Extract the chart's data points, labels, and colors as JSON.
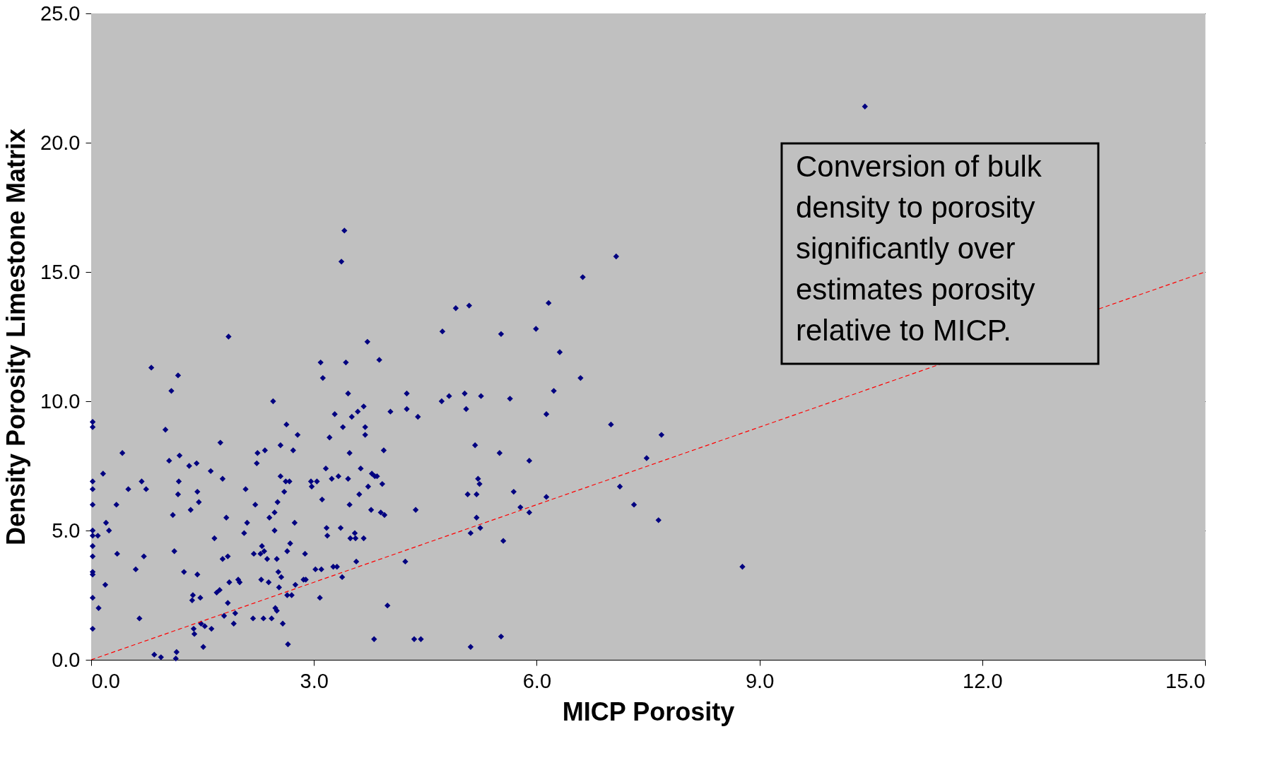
{
  "chart_data": {
    "type": "scatter",
    "xlabel": "MICP Porosity",
    "ylabel": "Density Porosity Limestone Matrix",
    "xlim": [
      0,
      15
    ],
    "ylim": [
      0,
      25
    ],
    "xticks": [
      {
        "value": 0,
        "label": "0.0"
      },
      {
        "value": 3,
        "label": "3.0"
      },
      {
        "value": 6,
        "label": "6.0"
      },
      {
        "value": 9,
        "label": "9.0"
      },
      {
        "value": 12,
        "label": "12.0"
      },
      {
        "value": 15,
        "label": "15.0"
      }
    ],
    "yticks": [
      {
        "value": 0,
        "label": "0.0"
      },
      {
        "value": 5,
        "label": "5.0"
      },
      {
        "value": 10,
        "label": "10.0"
      },
      {
        "value": 15,
        "label": "15.0"
      },
      {
        "value": 20,
        "label": "20.0"
      },
      {
        "value": 25,
        "label": "25.0"
      }
    ],
    "grid": "y",
    "marker": "diamond",
    "annotations": [
      "Conversion of bulk density to porosity significantly over estimates porosity relative to MICP."
    ],
    "series": [
      {
        "color": "#000080",
        "x": [
          0.02,
          0.02,
          0.02,
          0.02,
          0.02,
          0.02,
          0.02,
          0.02,
          0.02,
          0.02,
          0.02,
          0.02,
          0.02,
          0.09,
          0.1,
          0.16,
          0.19,
          0.2,
          0.24,
          0.34,
          0.35,
          0.42,
          0.5,
          0.6,
          0.65,
          0.68,
          0.71,
          0.74,
          0.81,
          0.85,
          0.94,
          1.0,
          1.05,
          1.08,
          1.1,
          1.12,
          1.14,
          1.15,
          1.17,
          1.17,
          1.18,
          1.19,
          1.25,
          1.32,
          1.34,
          1.36,
          1.37,
          1.38,
          1.39,
          1.42,
          1.43,
          1.45,
          1.43,
          1.47,
          1.48,
          1.51,
          1.53,
          1.61,
          1.62,
          1.66,
          1.69,
          1.73,
          1.74,
          1.77,
          1.77,
          1.79,
          1.82,
          1.84,
          1.85,
          1.84,
          1.86,
          1.92,
          1.94,
          1.98,
          2.0,
          2.08,
          2.06,
          2.1,
          2.18,
          2.19,
          2.21,
          2.23,
          2.24,
          2.28,
          2.29,
          2.3,
          2.32,
          2.33,
          2.34,
          2.37,
          2.39,
          2.4,
          2.43,
          2.45,
          2.47,
          2.47,
          2.48,
          2.5,
          2.5,
          2.51,
          2.52,
          2.53,
          2.55,
          2.55,
          2.56,
          2.58,
          2.6,
          2.62,
          2.63,
          2.64,
          2.64,
          2.65,
          2.67,
          2.68,
          2.7,
          2.72,
          2.74,
          2.75,
          2.78,
          2.86,
          2.88,
          2.89,
          2.96,
          2.97,
          3.02,
          3.04,
          3.08,
          3.09,
          3.1,
          3.11,
          3.12,
          3.16,
          3.17,
          3.18,
          3.21,
          3.24,
          3.26,
          3.28,
          3.31,
          3.33,
          3.36,
          3.37,
          3.38,
          3.39,
          3.41,
          3.43,
          3.46,
          3.46,
          3.48,
          3.48,
          3.49,
          3.51,
          3.55,
          3.56,
          3.57,
          3.59,
          3.61,
          3.63,
          3.67,
          3.67,
          3.69,
          3.69,
          3.72,
          3.73,
          3.77,
          3.78,
          3.81,
          3.82,
          3.85,
          3.88,
          3.9,
          3.92,
          3.94,
          3.95,
          3.99,
          4.03,
          4.23,
          4.25,
          4.25,
          4.35,
          4.37,
          4.4,
          4.44,
          4.73,
          4.72,
          4.82,
          4.91,
          5.03,
          5.05,
          5.07,
          5.09,
          5.11,
          5.11,
          5.17,
          5.19,
          5.19,
          5.21,
          5.23,
          5.24,
          5.25,
          5.5,
          5.52,
          5.52,
          5.55,
          5.64,
          5.69,
          5.78,
          5.9,
          5.9,
          5.99,
          6.13,
          6.13,
          6.16,
          6.23,
          6.31,
          6.59,
          6.62,
          7.0,
          7.07,
          7.12,
          7.31,
          7.48,
          7.64,
          7.68,
          8.77,
          10.42
        ],
        "values": [
          9.2,
          9.0,
          6.9,
          6.6,
          6.0,
          5.0,
          4.8,
          4.4,
          4.0,
          3.4,
          3.3,
          2.4,
          1.2,
          4.8,
          2.0,
          7.2,
          2.9,
          5.3,
          5.0,
          6.0,
          4.1,
          8.0,
          6.6,
          3.5,
          1.6,
          6.9,
          4.0,
          6.6,
          11.3,
          0.2,
          0.1,
          8.9,
          7.7,
          10.4,
          5.6,
          4.2,
          0.05,
          0.3,
          11.0,
          6.4,
          6.9,
          7.9,
          3.4,
          7.5,
          5.8,
          2.3,
          2.5,
          1.2,
          1.0,
          7.6,
          6.5,
          6.1,
          3.3,
          2.4,
          1.4,
          0.5,
          1.3,
          7.3,
          1.2,
          4.7,
          2.6,
          2.7,
          8.4,
          7.0,
          3.9,
          1.7,
          5.5,
          4.0,
          12.5,
          2.2,
          3.0,
          1.4,
          1.8,
          3.1,
          3.0,
          6.6,
          4.9,
          5.3,
          1.6,
          4.1,
          6.0,
          7.6,
          8.0,
          4.1,
          3.1,
          4.4,
          1.6,
          4.2,
          8.1,
          3.9,
          3.0,
          5.5,
          1.6,
          10.0,
          5.7,
          5.0,
          2.0,
          1.9,
          3.9,
          6.1,
          3.4,
          2.8,
          8.3,
          7.1,
          3.2,
          1.4,
          6.5,
          6.9,
          9.1,
          4.2,
          2.5,
          0.6,
          6.9,
          4.5,
          2.5,
          8.1,
          5.3,
          2.9,
          8.7,
          3.1,
          4.1,
          3.1,
          6.9,
          6.7,
          3.5,
          6.9,
          2.4,
          11.5,
          3.5,
          6.2,
          10.9,
          7.4,
          5.1,
          4.8,
          8.6,
          7.0,
          3.6,
          9.5,
          3.6,
          7.1,
          5.1,
          15.4,
          3.2,
          9.0,
          16.6,
          11.5,
          7.0,
          10.3,
          6.0,
          8.0,
          4.7,
          9.4,
          4.9,
          4.7,
          3.8,
          9.6,
          6.4,
          7.4,
          4.7,
          9.8,
          9.0,
          8.7,
          12.3,
          6.7,
          5.8,
          7.2,
          0.8,
          7.1,
          7.1,
          11.6,
          5.7,
          6.8,
          8.1,
          5.6,
          2.1,
          9.6,
          3.8,
          9.7,
          10.3,
          0.8,
          5.8,
          9.4,
          0.8,
          12.7,
          10.0,
          10.2,
          13.6,
          10.3,
          9.7,
          6.4,
          13.7,
          4.9,
          0.5,
          8.3,
          5.5,
          6.4,
          7.0,
          6.8,
          5.1,
          10.2,
          8.0,
          12.6,
          0.9,
          4.6,
          10.1,
          6.5,
          5.9,
          5.7,
          7.7,
          12.8,
          9.5,
          6.3,
          13.8,
          10.4,
          11.9,
          10.9,
          14.8,
          9.1,
          15.6,
          6.7,
          6.0,
          7.8,
          5.4,
          8.7,
          3.6,
          21.4
        ]
      },
      {
        "type": "line",
        "color": "#ff0000",
        "line_style": "dashed",
        "marker": "none",
        "x": [
          0,
          15
        ],
        "values": [
          0,
          15
        ]
      }
    ]
  }
}
